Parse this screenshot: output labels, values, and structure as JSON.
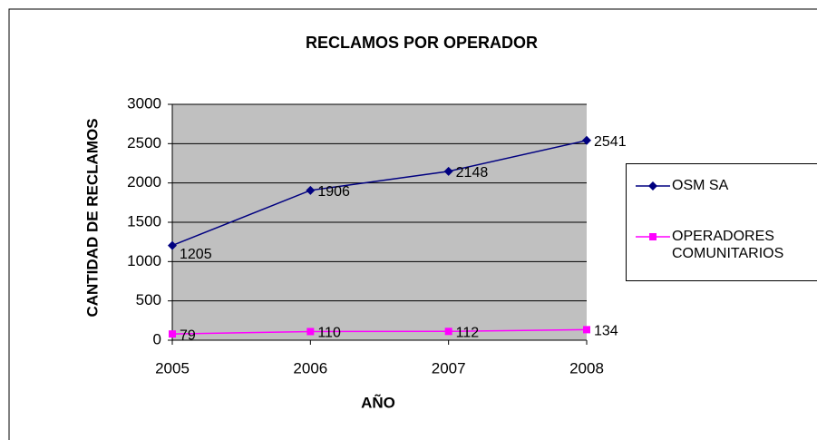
{
  "chart_data": {
    "type": "line",
    "title": "RECLAMOS POR OPERADOR",
    "x_label": "AÑO",
    "y_label": "CANTIDAD DE RECLAMOS",
    "categories": [
      "2005",
      "2006",
      "2007",
      "2008"
    ],
    "series": [
      {
        "name": "OSM SA",
        "color": "#000080",
        "marker": "diamond",
        "values": [
          1205,
          1906,
          2148,
          2541
        ]
      },
      {
        "name": "OPERADORES COMUNITARIOS",
        "color": "#ff00ff",
        "marker": "square",
        "values": [
          79,
          110,
          112,
          134
        ]
      }
    ],
    "ylim": [
      0,
      3000
    ],
    "yticks": [
      0,
      500,
      1000,
      1500,
      2000,
      2500,
      3000
    ],
    "grid": true,
    "legend": "right"
  }
}
